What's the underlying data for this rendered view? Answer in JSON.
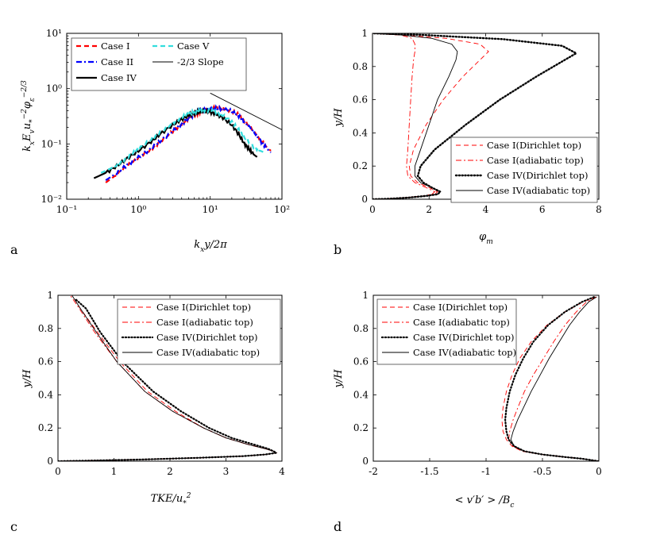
{
  "chart_data": [
    {
      "id": "a",
      "panel_letter": "a",
      "type": "line",
      "xscale": "log",
      "yscale": "log",
      "xlim": [
        0.1,
        100
      ],
      "ylim": [
        0.01,
        10
      ],
      "xlabel": "k_x y/2π",
      "ylabel": "k_x E_v u_*^{-2} φ_ε^{-2/3}",
      "xticks": [
        0.1,
        1,
        10,
        100
      ],
      "xtick_labels": [
        "10⁻¹",
        "10⁰",
        "10¹",
        "10²"
      ],
      "yticks": [
        0.01,
        0.1,
        1,
        10
      ],
      "ytick_labels": [
        "10⁻²",
        "10⁻¹",
        "10⁰",
        "10¹"
      ],
      "legend_position": "top-left",
      "legend_columns": 2,
      "series": [
        {
          "name": "Case I",
          "color": "#ff0000",
          "style": "dashed",
          "width": 2.2,
          "x": [
            0.35,
            0.5,
            0.7,
            1.0,
            1.5,
            2,
            3,
            4,
            5,
            6,
            7,
            8,
            10,
            12,
            15,
            20,
            25,
            30,
            40,
            50,
            60,
            70
          ],
          "y": [
            0.02,
            0.028,
            0.04,
            0.055,
            0.08,
            0.11,
            0.17,
            0.23,
            0.29,
            0.33,
            0.37,
            0.4,
            0.43,
            0.45,
            0.44,
            0.4,
            0.33,
            0.26,
            0.18,
            0.12,
            0.09,
            0.075
          ]
        },
        {
          "name": "Case II",
          "color": "#0000ff",
          "style": "dashdot",
          "width": 2.2,
          "x": [
            0.35,
            0.5,
            0.7,
            1.0,
            1.5,
            2,
            3,
            4,
            5,
            6,
            7,
            8,
            10,
            12,
            15,
            20,
            25,
            30,
            40,
            50,
            60,
            70
          ],
          "y": [
            0.022,
            0.03,
            0.042,
            0.057,
            0.082,
            0.112,
            0.17,
            0.23,
            0.29,
            0.34,
            0.38,
            0.41,
            0.43,
            0.44,
            0.43,
            0.39,
            0.32,
            0.25,
            0.17,
            0.115,
            0.085,
            0.07
          ]
        },
        {
          "name": "Case IV",
          "color": "#000000",
          "style": "solid",
          "width": 2.2,
          "x": [
            0.24,
            0.35,
            0.5,
            0.7,
            1.0,
            1.5,
            2,
            3,
            4,
            5,
            6,
            7,
            8,
            10,
            12,
            15,
            20,
            25,
            30,
            35,
            40,
            45
          ],
          "y": [
            0.024,
            0.03,
            0.04,
            0.055,
            0.075,
            0.11,
            0.15,
            0.22,
            0.28,
            0.33,
            0.36,
            0.38,
            0.39,
            0.38,
            0.35,
            0.3,
            0.22,
            0.15,
            0.1,
            0.08,
            0.065,
            0.058
          ]
        },
        {
          "name": "Case V",
          "color": "#33dddd",
          "style": "dashed",
          "width": 2.2,
          "x": [
            0.3,
            0.45,
            0.6,
            0.8,
            1.0,
            1.5,
            2,
            3,
            4,
            5,
            6,
            7,
            8,
            10,
            12,
            15,
            20,
            25,
            30,
            40,
            50,
            60
          ],
          "y": [
            0.03,
            0.038,
            0.05,
            0.065,
            0.08,
            0.12,
            0.16,
            0.24,
            0.3,
            0.35,
            0.38,
            0.4,
            0.41,
            0.4,
            0.38,
            0.33,
            0.25,
            0.18,
            0.13,
            0.09,
            0.075,
            0.068
          ]
        },
        {
          "name": "-2/3 Slope",
          "color": "#000000",
          "style": "solid",
          "width": 0.9,
          "x": [
            10,
            100
          ],
          "y": [
            0.83,
            0.18
          ]
        }
      ]
    },
    {
      "id": "b",
      "panel_letter": "b",
      "type": "line",
      "xlim": [
        0,
        8
      ],
      "ylim": [
        0,
        1
      ],
      "xlabel": "φ_m",
      "ylabel": "y/H",
      "xticks": [
        0,
        2,
        4,
        6,
        8
      ],
      "xtick_labels": [
        "0",
        "2",
        "4",
        "6",
        "8"
      ],
      "yticks": [
        0,
        0.2,
        0.4,
        0.6,
        0.8,
        1
      ],
      "ytick_labels": [
        "0",
        "0.2",
        "0.4",
        "0.6",
        "0.8",
        "1"
      ],
      "legend_position": "bottom-right",
      "legend_columns": 1,
      "series": [
        {
          "name": "Case I(Dirichlet top)",
          "color": "#ff0000",
          "style": "dashed",
          "width": 0.9,
          "x": [
            0,
            0.5,
            1.2,
            1.8,
            2.2,
            2.3,
            2.0,
            1.6,
            1.35,
            1.3,
            1.45,
            1.9,
            2.5,
            3.2,
            3.8,
            4.1,
            3.8,
            2.6,
            1.0,
            0
          ],
          "y": [
            0,
            0.003,
            0.01,
            0.02,
            0.03,
            0.045,
            0.07,
            0.1,
            0.14,
            0.2,
            0.3,
            0.45,
            0.6,
            0.74,
            0.84,
            0.89,
            0.935,
            0.97,
            0.99,
            1
          ]
        },
        {
          "name": "Case I(adiabatic top)",
          "color": "#ff0000",
          "style": "dashdot",
          "width": 0.9,
          "x": [
            0,
            0.5,
            1.2,
            1.8,
            2.1,
            2.2,
            1.9,
            1.5,
            1.25,
            1.2,
            1.25,
            1.3,
            1.35,
            1.4,
            1.45,
            1.5,
            1.5,
            1.4,
            1.0,
            0
          ],
          "y": [
            0,
            0.003,
            0.01,
            0.02,
            0.03,
            0.045,
            0.07,
            0.1,
            0.14,
            0.2,
            0.3,
            0.45,
            0.6,
            0.74,
            0.84,
            0.89,
            0.935,
            0.97,
            0.99,
            1
          ]
        },
        {
          "name": "Case IV(Dirichlet top)",
          "color": "#000000",
          "style": "dotted",
          "width": 2.4,
          "x": [
            0,
            0.6,
            1.3,
            1.9,
            2.3,
            2.4,
            2.1,
            1.8,
            1.6,
            1.7,
            2.2,
            3.3,
            4.5,
            5.8,
            6.8,
            7.2,
            6.7,
            4.6,
            1.8,
            0
          ],
          "y": [
            0,
            0.003,
            0.01,
            0.02,
            0.03,
            0.045,
            0.07,
            0.1,
            0.14,
            0.2,
            0.3,
            0.45,
            0.6,
            0.74,
            0.84,
            0.88,
            0.925,
            0.965,
            0.99,
            1
          ]
        },
        {
          "name": "Case IV(adiabatic top)",
          "color": "#000000",
          "style": "solid",
          "width": 0.9,
          "x": [
            0,
            0.6,
            1.3,
            1.9,
            2.3,
            2.4,
            2.1,
            1.7,
            1.5,
            1.5,
            1.7,
            2.0,
            2.3,
            2.7,
            2.95,
            3.0,
            2.8,
            2.1,
            1.0,
            0
          ],
          "y": [
            0,
            0.003,
            0.01,
            0.02,
            0.03,
            0.045,
            0.07,
            0.1,
            0.14,
            0.2,
            0.3,
            0.45,
            0.6,
            0.74,
            0.84,
            0.89,
            0.935,
            0.97,
            0.99,
            1
          ]
        }
      ]
    },
    {
      "id": "c",
      "panel_letter": "c",
      "type": "line",
      "xlim": [
        0,
        4
      ],
      "ylim": [
        0,
        1
      ],
      "xlabel": "TKE/u_*^2",
      "ylabel": "y/H",
      "xticks": [
        0,
        1,
        2,
        3,
        4
      ],
      "xtick_labels": [
        "0",
        "1",
        "2",
        "3",
        "4"
      ],
      "yticks": [
        0,
        0.2,
        0.4,
        0.6,
        0.8,
        1
      ],
      "ytick_labels": [
        "0",
        "0.2",
        "0.4",
        "0.6",
        "0.8",
        "1"
      ],
      "legend_position": "top-right",
      "legend_columns": 1,
      "series": [
        {
          "name": "Case I(Dirichlet top)",
          "color": "#ff0000",
          "style": "dashed",
          "width": 0.9,
          "x": [
            0,
            0.5,
            1.5,
            2.5,
            3.3,
            3.7,
            3.9,
            3.85,
            3.7,
            3.4,
            3.0,
            2.6,
            2.1,
            1.6,
            1.1,
            0.7,
            0.4,
            0.25
          ],
          "y": [
            0,
            0.003,
            0.01,
            0.02,
            0.03,
            0.04,
            0.05,
            0.06,
            0.075,
            0.1,
            0.14,
            0.2,
            0.3,
            0.42,
            0.6,
            0.78,
            0.92,
            1
          ]
        },
        {
          "name": "Case I(adiabatic top)",
          "color": "#ff0000",
          "style": "dashdot",
          "width": 0.9,
          "x": [
            0,
            0.5,
            1.5,
            2.5,
            3.3,
            3.7,
            3.9,
            3.85,
            3.7,
            3.4,
            3.0,
            2.6,
            2.05,
            1.55,
            1.05,
            0.65,
            0.38,
            0.22
          ],
          "y": [
            0,
            0.003,
            0.01,
            0.02,
            0.03,
            0.04,
            0.05,
            0.06,
            0.075,
            0.1,
            0.14,
            0.2,
            0.3,
            0.42,
            0.6,
            0.78,
            0.92,
            1
          ]
        },
        {
          "name": "Case IV(Dirichlet top)",
          "color": "#000000",
          "style": "dotted",
          "width": 2.2,
          "x": [
            0,
            0.5,
            1.5,
            2.5,
            3.3,
            3.7,
            3.9,
            3.85,
            3.75,
            3.5,
            3.1,
            2.7,
            2.2,
            1.7,
            1.15,
            0.75,
            0.5,
            0.3
          ],
          "y": [
            0,
            0.003,
            0.01,
            0.02,
            0.03,
            0.04,
            0.05,
            0.06,
            0.075,
            0.1,
            0.14,
            0.2,
            0.3,
            0.42,
            0.6,
            0.78,
            0.92,
            0.98
          ]
        },
        {
          "name": "Case IV(adiabatic top)",
          "color": "#000000",
          "style": "solid",
          "width": 0.9,
          "x": [
            0,
            0.5,
            1.5,
            2.5,
            3.3,
            3.7,
            3.9,
            3.85,
            3.7,
            3.4,
            3.0,
            2.6,
            2.05,
            1.55,
            1.05,
            0.68,
            0.4,
            0.25
          ],
          "y": [
            0,
            0.003,
            0.01,
            0.02,
            0.03,
            0.04,
            0.05,
            0.06,
            0.075,
            0.1,
            0.14,
            0.2,
            0.3,
            0.42,
            0.6,
            0.78,
            0.92,
            1
          ]
        }
      ]
    },
    {
      "id": "d",
      "panel_letter": "d",
      "type": "line",
      "xlim": [
        -2,
        0
      ],
      "ylim": [
        0,
        1
      ],
      "xlabel": "< v′b′ > /B_c",
      "ylabel": "y/H",
      "xticks": [
        -2,
        -1.5,
        -1,
        -0.5,
        0
      ],
      "xtick_labels": [
        "-2",
        "-1.5",
        "-1",
        "-0.5",
        "0"
      ],
      "yticks": [
        0,
        0.2,
        0.4,
        0.6,
        0.8,
        1
      ],
      "ytick_labels": [
        "0",
        "0.2",
        "0.4",
        "0.6",
        "0.8",
        "1"
      ],
      "legend_position": "top-left",
      "legend_columns": 1,
      "series": [
        {
          "name": "Case I(Dirichlet top)",
          "color": "#ff0000",
          "style": "dashed",
          "width": 0.9,
          "x": [
            0,
            -0.05,
            -0.15,
            -0.3,
            -0.5,
            -0.68,
            -0.77,
            -0.82,
            -0.85,
            -0.86,
            -0.85,
            -0.82,
            -0.77,
            -0.7,
            -0.6,
            -0.46,
            -0.3,
            -0.14,
            -0.03
          ],
          "y": [
            0,
            0.005,
            0.015,
            0.025,
            0.04,
            0.06,
            0.09,
            0.13,
            0.18,
            0.25,
            0.32,
            0.42,
            0.52,
            0.62,
            0.72,
            0.82,
            0.9,
            0.96,
            0.99
          ]
        },
        {
          "name": "Case I(adiabatic top)",
          "color": "#ff0000",
          "style": "dashdot",
          "width": 0.9,
          "x": [
            0,
            -0.05,
            -0.15,
            -0.3,
            -0.5,
            -0.68,
            -0.76,
            -0.8,
            -0.79,
            -0.76,
            -0.72,
            -0.66,
            -0.58,
            -0.49,
            -0.4,
            -0.3,
            -0.2,
            -0.11,
            -0.02
          ],
          "y": [
            0,
            0.005,
            0.015,
            0.025,
            0.04,
            0.06,
            0.09,
            0.13,
            0.18,
            0.25,
            0.32,
            0.42,
            0.52,
            0.62,
            0.72,
            0.82,
            0.9,
            0.96,
            0.99
          ]
        },
        {
          "name": "Case IV(Dirichlet top)",
          "color": "#000000",
          "style": "dotted",
          "width": 2.2,
          "x": [
            0,
            -0.05,
            -0.15,
            -0.3,
            -0.5,
            -0.66,
            -0.75,
            -0.8,
            -0.82,
            -0.83,
            -0.82,
            -0.79,
            -0.74,
            -0.67,
            -0.58,
            -0.45,
            -0.3,
            -0.15,
            -0.04
          ],
          "y": [
            0,
            0.005,
            0.015,
            0.025,
            0.04,
            0.06,
            0.09,
            0.13,
            0.18,
            0.25,
            0.32,
            0.42,
            0.52,
            0.62,
            0.72,
            0.82,
            0.9,
            0.96,
            0.99
          ]
        },
        {
          "name": "Case IV(adiabatic top)",
          "color": "#000000",
          "style": "solid",
          "width": 0.9,
          "x": [
            0,
            -0.05,
            -0.15,
            -0.3,
            -0.5,
            -0.66,
            -0.75,
            -0.78,
            -0.76,
            -0.72,
            -0.67,
            -0.6,
            -0.52,
            -0.44,
            -0.35,
            -0.26,
            -0.17,
            -0.09,
            -0.02
          ],
          "y": [
            0,
            0.005,
            0.015,
            0.025,
            0.04,
            0.06,
            0.09,
            0.13,
            0.18,
            0.25,
            0.32,
            0.42,
            0.52,
            0.62,
            0.72,
            0.82,
            0.9,
            0.96,
            0.99
          ]
        }
      ]
    }
  ]
}
